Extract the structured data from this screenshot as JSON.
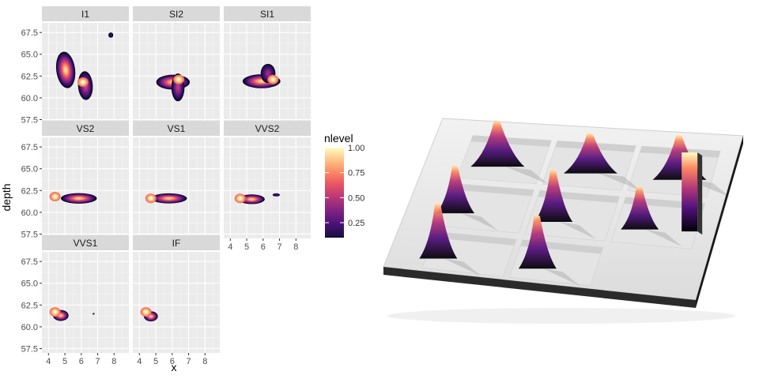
{
  "chart_data": [
    {
      "type": "heatmap",
      "subtype": "faceted-2d-density-filled-contour",
      "xlabel": "x",
      "ylabel": "depth",
      "x_ticks": [
        "4",
        "5",
        "6",
        "7",
        "8"
      ],
      "y_ticks": [
        "57.5",
        "60.0",
        "62.5",
        "65.0",
        "67.5"
      ],
      "xlim": [
        3.6,
        8.9
      ],
      "ylim": [
        57.0,
        68.6
      ],
      "grid": true,
      "legend": {
        "title": "nlevel",
        "position": "right",
        "ticks": [
          "0.25",
          "0.50",
          "0.75",
          "1.00"
        ],
        "range": [
          0.1,
          1.0
        ]
      },
      "color_scale": [
        "#000004",
        "#1d1147",
        "#51127c",
        "#822681",
        "#b63679",
        "#e65164",
        "#fb8761",
        "#fec287",
        "#fcfdbf"
      ],
      "facets": [
        {
          "label": "I1",
          "blobs": [
            {
              "x": 5.05,
              "y": 63.2,
              "sx": 1.15,
              "sy": 4.2,
              "rot": 1.2,
              "w": 1.0
            },
            {
              "x": 6.25,
              "y": 61.4,
              "sx": 0.9,
              "sy": 3.3,
              "rot": 0.6,
              "w": 0.6
            },
            {
              "x": 7.8,
              "y": 67.2,
              "sx": 0.3,
              "sy": 0.6,
              "rot": 0,
              "w": 0.15
            }
          ],
          "peak": {
            "x": 6.1,
            "y": 61.8
          }
        },
        {
          "label": "SI2",
          "blobs": [
            {
              "x": 6.05,
              "y": 61.8,
              "sx": 2.05,
              "sy": 1.7,
              "rot": 0,
              "w": 1.0
            },
            {
              "x": 6.35,
              "y": 61.2,
              "sx": 0.8,
              "sy": 3.2,
              "rot": 0,
              "w": 0.55
            }
          ],
          "peak": {
            "x": 6.4,
            "y": 62.1
          }
        },
        {
          "label": "SI1",
          "blobs": [
            {
              "x": 5.9,
              "y": 61.9,
              "sx": 2.3,
              "sy": 1.6,
              "rot": 0,
              "w": 1.0
            },
            {
              "x": 6.3,
              "y": 62.8,
              "sx": 0.9,
              "sy": 2.2,
              "rot": 0,
              "w": 0.45
            }
          ],
          "peak": {
            "x": 6.6,
            "y": 62.1
          }
        },
        {
          "label": "VS2",
          "blobs": [
            {
              "x": 5.85,
              "y": 61.6,
              "sx": 2.2,
              "sy": 1.2,
              "rot": 0,
              "w": 1.0
            }
          ],
          "peak": {
            "x": 4.4,
            "y": 61.8
          }
        },
        {
          "label": "VS1",
          "blobs": [
            {
              "x": 5.8,
              "y": 61.6,
              "sx": 2.2,
              "sy": 1.15,
              "rot": 0,
              "w": 1.0
            }
          ],
          "peak": {
            "x": 4.7,
            "y": 61.6
          }
        },
        {
          "label": "VVS2",
          "blobs": [
            {
              "x": 5.3,
              "y": 61.5,
              "sx": 1.6,
              "sy": 1.1,
              "rot": 0,
              "w": 1.0
            },
            {
              "x": 6.8,
              "y": 62.0,
              "sx": 0.45,
              "sy": 0.35,
              "rot": 0,
              "w": 0.25
            }
          ],
          "peak": {
            "x": 4.6,
            "y": 61.6
          }
        },
        {
          "label": "VVS1",
          "blobs": [
            {
              "x": 4.75,
              "y": 61.3,
              "sx": 0.95,
              "sy": 1.25,
              "rot": 0,
              "w": 1.0
            },
            {
              "x": 6.75,
              "y": 61.5,
              "sx": 0.12,
              "sy": 0.18,
              "rot": 0,
              "w": 0.12
            }
          ],
          "peak": {
            "x": 4.4,
            "y": 61.7
          }
        },
        {
          "label": "IF",
          "blobs": [
            {
              "x": 4.7,
              "y": 61.2,
              "sx": 0.85,
              "sy": 1.15,
              "rot": 0,
              "w": 1.0
            }
          ],
          "peak": {
            "x": 4.4,
            "y": 61.7
          }
        }
      ]
    },
    {
      "type": "heatmap",
      "subtype": "3d-perspective-render-of-faceted-density",
      "description_facets": [
        "I1",
        "SI2",
        "SI1",
        "VS2",
        "VS1",
        "VVS2",
        "VVS1",
        "IF"
      ],
      "legend_title": "nlevel",
      "legend_ticks": [
        "0.25",
        "0.50",
        "0.75",
        "1.00"
      ],
      "x_ticks": [
        "4",
        "5",
        "6",
        "7",
        "8"
      ],
      "y_ticks": [
        "57.5",
        "60.0",
        "62.5",
        "65.0",
        "67.5"
      ],
      "xlabel": "x",
      "ylabel": "depth"
    }
  ]
}
